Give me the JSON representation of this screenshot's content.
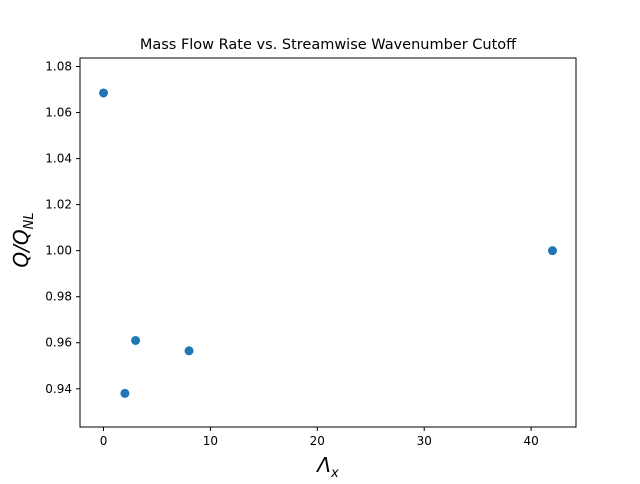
{
  "chart_data": {
    "type": "scatter",
    "title": "Mass Flow Rate vs. Streamwise Wavenumber Cutoff",
    "xlabel": {
      "main": "Λ",
      "sub": "x"
    },
    "ylabel": {
      "main": "Q/Q",
      "sub": "NL"
    },
    "xlim": [
      -2.2,
      44.2
    ],
    "ylim": [
      0.9234,
      1.0837
    ],
    "xticks": [
      0,
      10,
      20,
      30,
      40
    ],
    "xtick_labels": [
      "0",
      "10",
      "20",
      "30",
      "40"
    ],
    "yticks": [
      0.94,
      0.96,
      0.98,
      1.0,
      1.02,
      1.04,
      1.06,
      1.08
    ],
    "ytick_labels": [
      "0.94",
      "0.96",
      "0.98",
      "1.00",
      "1.02",
      "1.04",
      "1.06",
      "1.08"
    ],
    "grid": false,
    "marker_color": "#1f77b4",
    "series": [
      {
        "x": [
          0,
          2,
          3,
          8,
          42
        ],
        "y": [
          1.0685,
          0.938,
          0.961,
          0.9565,
          1.0
        ]
      }
    ]
  }
}
